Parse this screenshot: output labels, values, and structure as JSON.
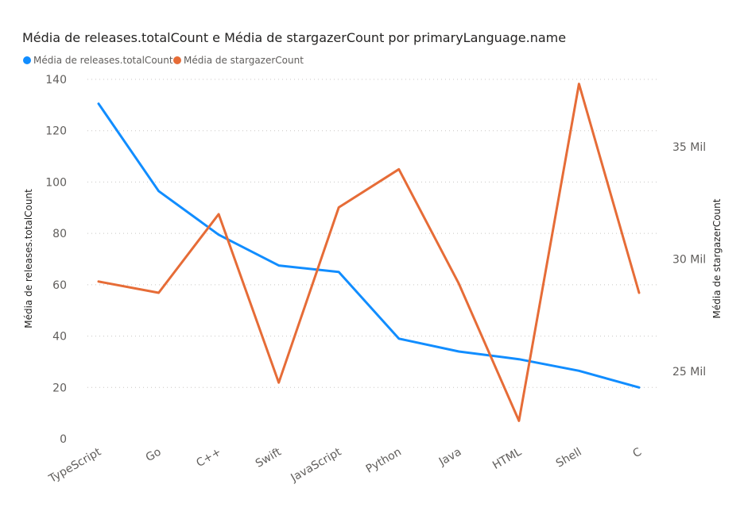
{
  "chart_data": {
    "type": "line",
    "title": "Média de releases.totalCount e Média de stargazerCount por primaryLanguage.name",
    "categories": [
      "TypeScript",
      "Go",
      "C++",
      "Swift",
      "JavaScript",
      "Python",
      "Java",
      "HTML",
      "Shell",
      "C"
    ],
    "series": [
      {
        "name": "Média de releases.totalCount",
        "axis": "left",
        "color": "#118DFF",
        "values": [
          130.5,
          96.5,
          79.5,
          67.5,
          65,
          39,
          34,
          31,
          26.5,
          20
        ]
      },
      {
        "name": "Média de stargazerCount",
        "axis": "right",
        "color": "#E66C37",
        "values": [
          29000,
          28500,
          32000,
          24500,
          32300,
          34000,
          28900,
          22800,
          37800,
          28500
        ]
      }
    ],
    "y_left": {
      "label": "Média de releases.totalCount",
      "range": [
        0,
        140
      ],
      "ticks": [
        0,
        20,
        40,
        60,
        80,
        100,
        120,
        140
      ],
      "tick_labels": [
        "0",
        "20",
        "40",
        "60",
        "80",
        "100",
        "120",
        "140"
      ]
    },
    "y_right": {
      "label": "Média de stargazerCount",
      "range": [
        22000,
        38000
      ],
      "ticks": [
        25000,
        30000,
        35000
      ],
      "tick_labels": [
        "25 Mil",
        "30 Mil",
        "35 Mil"
      ]
    },
    "grid": true,
    "legend_position": "top-left"
  }
}
